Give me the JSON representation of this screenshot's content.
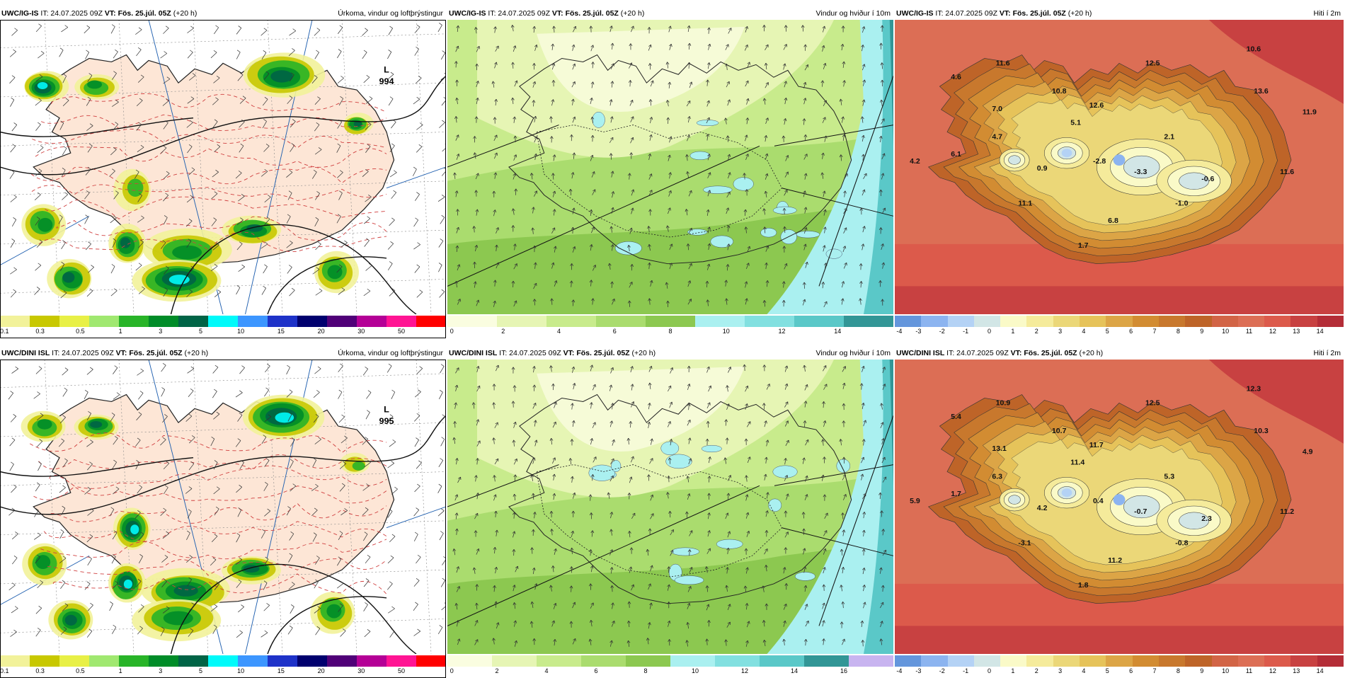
{
  "rows": [
    {
      "model": "UWC/IG-IS",
      "it": " IT: 24.07.2025 09Z ",
      "vt_label": "VT: Fös. 25.júl. 05Z",
      "lead": " (+20 h)",
      "precip": {
        "title": "Úrkoma, vindur og loftþrýstingur",
        "low": {
          "letter": "L",
          "value": "994"
        },
        "colors": [
          "#f2f29a",
          "#c8c800",
          "#e8f046",
          "#a0e870",
          "#28b428",
          "#008c28",
          "#006446",
          "#00fafa",
          "#3c96ff",
          "#1e32c8",
          "#00006e",
          "#500078",
          "#b40096",
          "#ff1493",
          "#ff0000"
        ],
        "ticks": [
          "0.1",
          "0.3",
          "0.5",
          "1",
          "3",
          "5",
          "10",
          "15",
          "20",
          "30",
          "50"
        ]
      },
      "wind": {
        "title": "Vindur og hviður í 10m",
        "colors": [
          "#fafde0",
          "#e6f5b4",
          "#c8eb8c",
          "#aadc6e",
          "#8cc850",
          "#aaf0f0",
          "#82e0e0",
          "#5ac8c8",
          "#329696"
        ],
        "ticks": [
          "0",
          "2",
          "4",
          "6",
          "8",
          "10",
          "12",
          "14"
        ]
      },
      "temp": {
        "title": "Hiti í 2m",
        "labels": [
          "11.6",
          "12.5",
          "10.6",
          "4.6",
          "10.8",
          "13.6",
          "12.6",
          "7.0",
          "5.1",
          "11.9",
          "4.7",
          "2.1",
          "6.1",
          "4.2",
          "0.9",
          "-2.8",
          "-3.3",
          "-0.6",
          "11.6",
          "11.1",
          "-1.0",
          "6.8",
          "1.7"
        ],
        "colors": [
          "#6496dc",
          "#8cb4f0",
          "#b4d2f5",
          "#d2e6e6",
          "#fafac8",
          "#f5eb9b",
          "#ebd778",
          "#e6c35a",
          "#dca546",
          "#d28c32",
          "#c8782d",
          "#be6428",
          "#d26446",
          "#dc6e55",
          "#dc5a4b",
          "#c84141",
          "#b42d37"
        ],
        "ticks": [
          "-4",
          "-3",
          "-2",
          "-1",
          "0",
          "1",
          "2",
          "3",
          "4",
          "5",
          "6",
          "7",
          "8",
          "9",
          "10",
          "11",
          "12",
          "13",
          "14"
        ]
      }
    },
    {
      "model": "UWC/DINI ISL",
      "it": " IT: 24.07.2025 09Z ",
      "vt_label": "VT: Fös. 25.júl. 05Z",
      "lead": " (+20 h)",
      "precip": {
        "title": "Úrkoma, vindur og loftþrýstingur",
        "low": {
          "letter": "L",
          "value": "995"
        },
        "colors": [
          "#f2f29a",
          "#c8c800",
          "#e8f046",
          "#a0e870",
          "#28b428",
          "#008c28",
          "#006446",
          "#00fafa",
          "#3c96ff",
          "#1e32c8",
          "#00006e",
          "#500078",
          "#b40096",
          "#ff1493",
          "#ff0000"
        ],
        "ticks": [
          "0.1",
          "0.3",
          "0.5",
          "1",
          "3",
          "5",
          "10",
          "15",
          "20",
          "30",
          "50"
        ]
      },
      "wind": {
        "title": "Vindur og hviður í 10m",
        "colors": [
          "#fafde0",
          "#e6f5b4",
          "#c8eb8c",
          "#aadc6e",
          "#8cc850",
          "#aaf0f0",
          "#82e0e0",
          "#5ac8c8",
          "#329696",
          "#c8b4f0"
        ],
        "ticks": [
          "0",
          "2",
          "4",
          "6",
          "8",
          "10",
          "12",
          "14",
          "16"
        ]
      },
      "temp": {
        "title": "Hiti í 2m",
        "labels": [
          "10.9",
          "12.5",
          "12.3",
          "5.4",
          "10.7",
          "10.3",
          "11.7",
          "13.1",
          "11.4",
          "4.9",
          "6.3",
          "5.3",
          "1.7",
          "5.9",
          "4.2",
          "0.4",
          "-0.7",
          "2.3",
          "11.2",
          "-3.1",
          "-0.8",
          "11.2",
          "1.8"
        ],
        "colors": [
          "#6496dc",
          "#8cb4f0",
          "#b4d2f5",
          "#d2e6e6",
          "#fafac8",
          "#f5eb9b",
          "#ebd778",
          "#e6c35a",
          "#dca546",
          "#d28c32",
          "#c8782d",
          "#be6428",
          "#d26446",
          "#dc6e55",
          "#dc5a4b",
          "#c84141",
          "#b42d37"
        ],
        "ticks": [
          "-4",
          "-3",
          "-2",
          "-1",
          "0",
          "1",
          "2",
          "3",
          "4",
          "5",
          "6",
          "7",
          "8",
          "9",
          "10",
          "11",
          "12",
          "13",
          "14"
        ]
      }
    }
  ]
}
